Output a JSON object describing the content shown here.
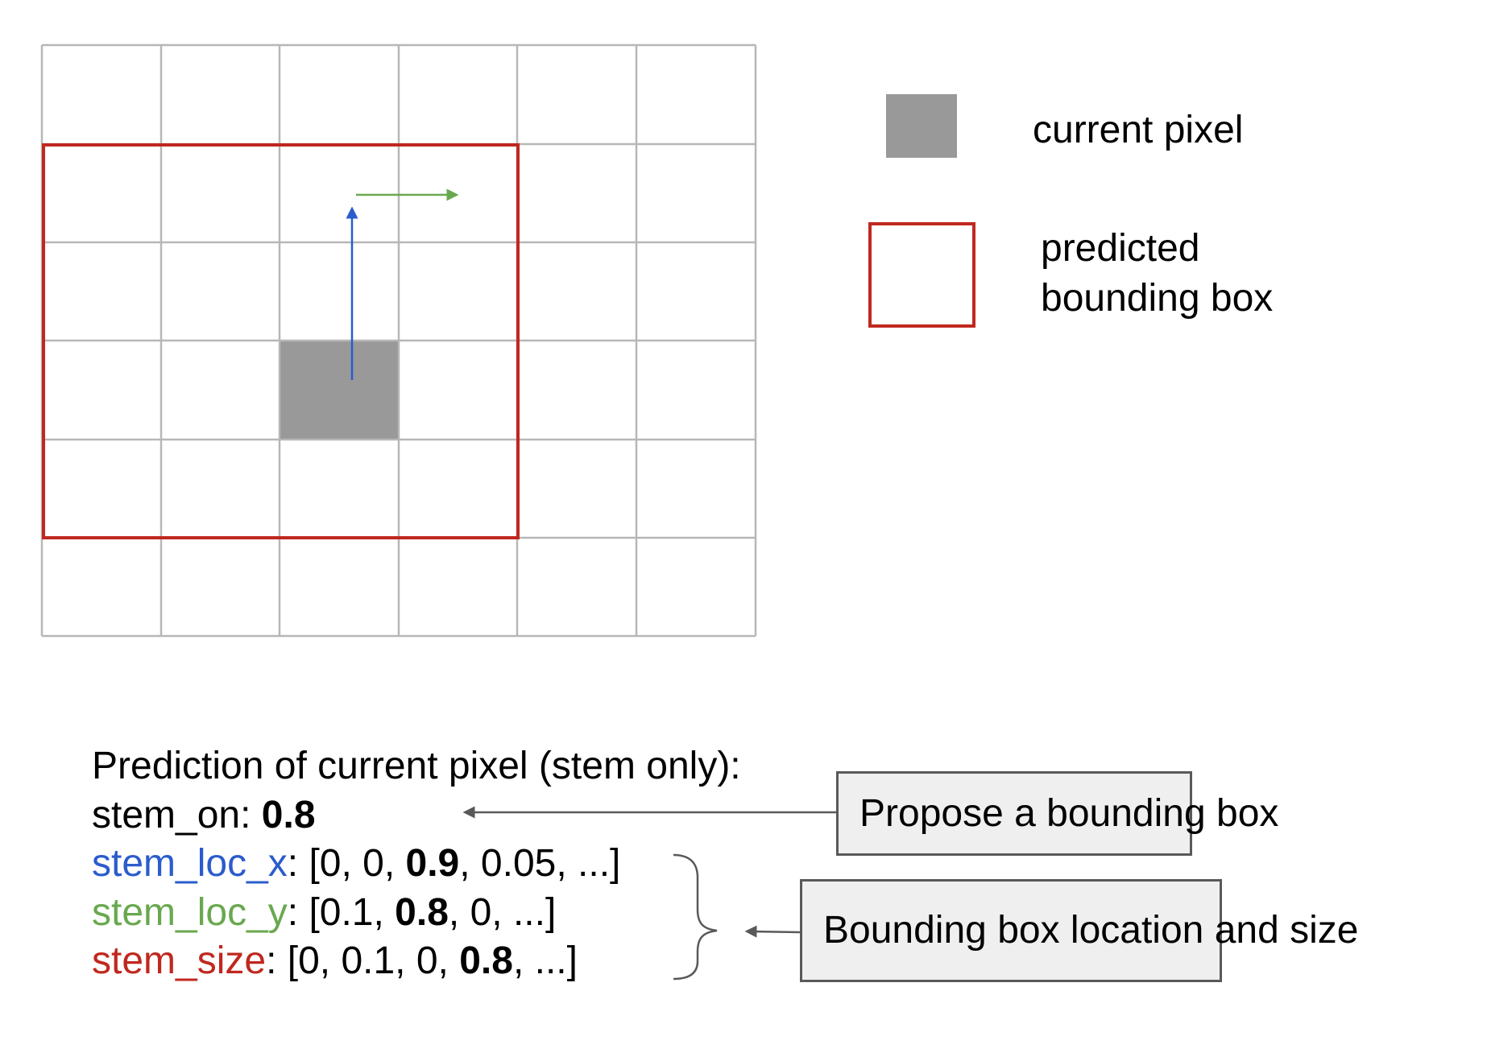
{
  "legend": {
    "current_pixel_label": "current pixel",
    "bbox_label_line1": "predicted",
    "bbox_label_line2": "bounding box"
  },
  "prediction": {
    "heading": "Prediction of current pixel (stem only):",
    "stem_on": {
      "name": "stem_on",
      "sep": ": ",
      "value": "0.8"
    },
    "stem_loc_x": {
      "name": "stem_loc_x",
      "pre": ": [0, 0, ",
      "bold": "0.9",
      "post": ", 0.05, ...]"
    },
    "stem_loc_y": {
      "name": "stem_loc_y",
      "pre": ": [0.1, ",
      "bold": "0.8",
      "post": ", 0, ...]"
    },
    "stem_size": {
      "name": "stem_size",
      "pre": ": [0, 0.1, 0, ",
      "bold": "0.8",
      "post": ", ...]"
    }
  },
  "callouts": {
    "propose": "Propose a bounding box",
    "location_size": "Bounding box location and size"
  },
  "colors": {
    "grid": "#b7b7b7",
    "pixel": "#999999",
    "bbox": "#c0281f",
    "loc_x": "#2b5ccc",
    "loc_y": "#6aa84f",
    "size": "#c0281f",
    "arrow": "#595959",
    "callout_bg": "#efefef"
  }
}
